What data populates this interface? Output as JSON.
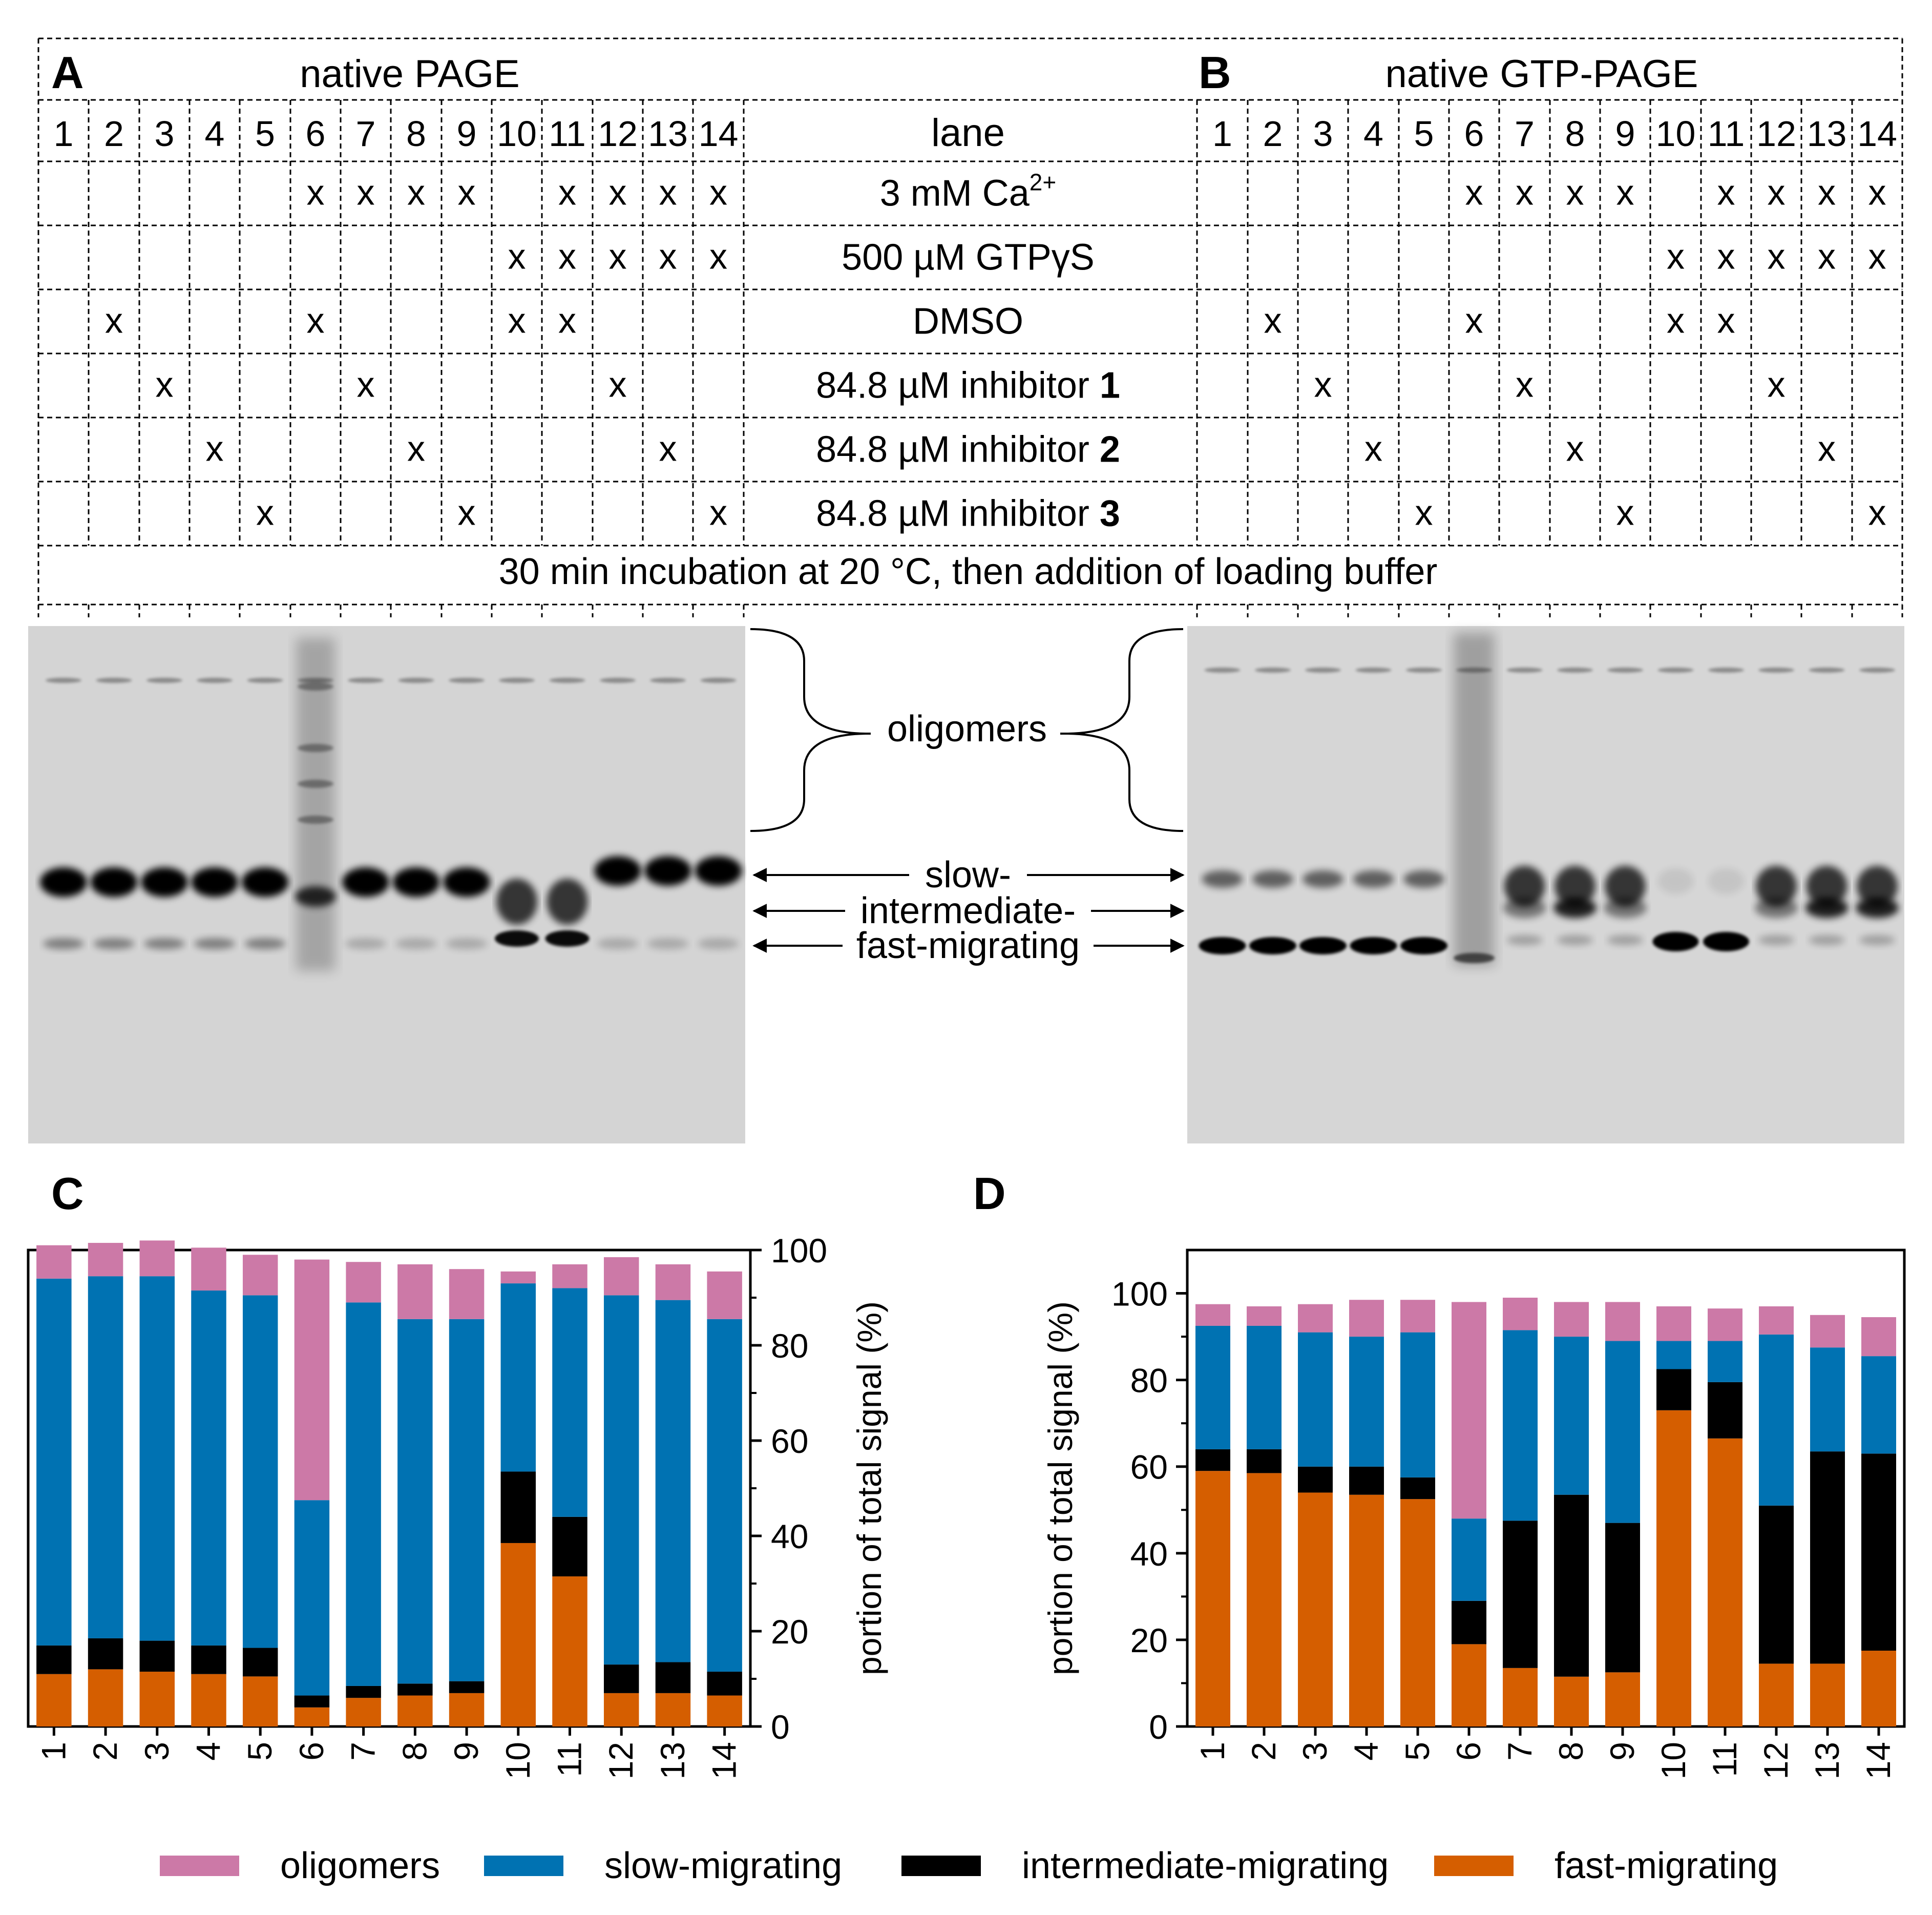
{
  "panel_a": {
    "letter": "A",
    "title": "native PAGE",
    "lanes": [
      "1",
      "2",
      "3",
      "4",
      "5",
      "6",
      "7",
      "8",
      "9",
      "10",
      "11",
      "12",
      "13",
      "14"
    ]
  },
  "panel_b": {
    "letter": "B",
    "title": "native GTP-PAGE",
    "lanes": [
      "1",
      "2",
      "3",
      "4",
      "5",
      "6",
      "7",
      "8",
      "9",
      "10",
      "11",
      "12",
      "13",
      "14"
    ]
  },
  "table": {
    "lane_header": "lane",
    "mark": "x",
    "rows": [
      {
        "label": "3 mM Ca",
        "sup": "2+",
        "bold": "",
        "marks": [
          6,
          7,
          8,
          9,
          11,
          12,
          13,
          14
        ]
      },
      {
        "label": "500 µM GTPγS",
        "sup": "",
        "bold": "",
        "marks": [
          10,
          11,
          12,
          13,
          14
        ]
      },
      {
        "label": "DMSO",
        "sup": "",
        "bold": "",
        "marks": [
          2,
          6,
          10,
          11
        ]
      },
      {
        "label": "84.8 µM inhibitor ",
        "sup": "",
        "bold": "1",
        "marks": [
          3,
          7,
          12
        ]
      },
      {
        "label": "84.8 µM inhibitor ",
        "sup": "",
        "bold": "2",
        "marks": [
          4,
          8,
          13
        ]
      },
      {
        "label": "84.8 µM inhibitor ",
        "sup": "",
        "bold": "3",
        "marks": [
          5,
          9,
          14
        ]
      }
    ],
    "footer": "30 min incubation at 20 °C, then addition of loading buffer"
  },
  "gel_labels": {
    "oligomers": "oligomers",
    "slow": "slow-",
    "intermediate": "intermediate-",
    "fast": "fast-migrating"
  },
  "colors": {
    "oligomers": "#cc79a7",
    "slow": "#0072b2",
    "intermediate": "#000000",
    "fast": "#d55e00"
  },
  "chart_data": [
    {
      "panel": "C",
      "type": "bar",
      "stacked": true,
      "categories": [
        "1",
        "2",
        "3",
        "4",
        "5",
        "6",
        "7",
        "8",
        "9",
        "10",
        "11",
        "12",
        "13",
        "14"
      ],
      "ylabel": "portion of total signal (%)",
      "ylim": [
        0,
        100
      ],
      "yticks": [
        0,
        20,
        40,
        60,
        80,
        100
      ],
      "axis_side": "right",
      "series": [
        {
          "name": "fast-migrating",
          "values": [
            11,
            12,
            11.5,
            11,
            10.5,
            4,
            6,
            6.5,
            7,
            38.5,
            31.5,
            7,
            7,
            6.5
          ]
        },
        {
          "name": "intermediate-migrating",
          "values": [
            6,
            6.5,
            6.5,
            6,
            6,
            2.5,
            2.5,
            2.5,
            2.5,
            15,
            12.5,
            6,
            6.5,
            5
          ]
        },
        {
          "name": "slow-migrating",
          "values": [
            77,
            76,
            76.5,
            74.5,
            74,
            41,
            80.5,
            76.5,
            76,
            39.5,
            48,
            77.5,
            76,
            74
          ]
        },
        {
          "name": "oligomers",
          "values": [
            7,
            7,
            7.5,
            9,
            8.5,
            50.5,
            8.5,
            11.5,
            10.5,
            2.5,
            5,
            8,
            7.5,
            10
          ]
        }
      ]
    },
    {
      "panel": "D",
      "type": "bar",
      "stacked": true,
      "categories": [
        "1",
        "2",
        "3",
        "4",
        "5",
        "6",
        "7",
        "8",
        "9",
        "10",
        "11",
        "12",
        "13",
        "14"
      ],
      "ylabel": "portion of total signal (%)",
      "ylim": [
        0,
        110
      ],
      "yticks": [
        0,
        20,
        40,
        60,
        80,
        100
      ],
      "axis_side": "left",
      "series": [
        {
          "name": "fast-migrating",
          "values": [
            59,
            58.5,
            54,
            53.5,
            52.5,
            19,
            13.5,
            11.5,
            12.5,
            73,
            66.5,
            14.5,
            14.5,
            17.5
          ]
        },
        {
          "name": "intermediate-migrating",
          "values": [
            5,
            5.5,
            6,
            6.5,
            5,
            10,
            34,
            42,
            34.5,
            9.5,
            13,
            36.5,
            49,
            45.5
          ]
        },
        {
          "name": "slow-migrating",
          "values": [
            28.5,
            28.5,
            31,
            30,
            33.5,
            19,
            44,
            36.5,
            42,
            6.5,
            9.5,
            39.5,
            24,
            22.5
          ]
        },
        {
          "name": "oligomers",
          "values": [
            5,
            4.5,
            6.5,
            8.5,
            7.5,
            50,
            7.5,
            8,
            9,
            8,
            7.5,
            6.5,
            7.5,
            9
          ]
        }
      ]
    }
  ],
  "legend": [
    {
      "key": "oligomers",
      "label": "oligomers"
    },
    {
      "key": "slow",
      "label": "slow-migrating"
    },
    {
      "key": "intermediate",
      "label": "intermediate-migrating"
    },
    {
      "key": "fast",
      "label": "fast-migrating"
    }
  ]
}
